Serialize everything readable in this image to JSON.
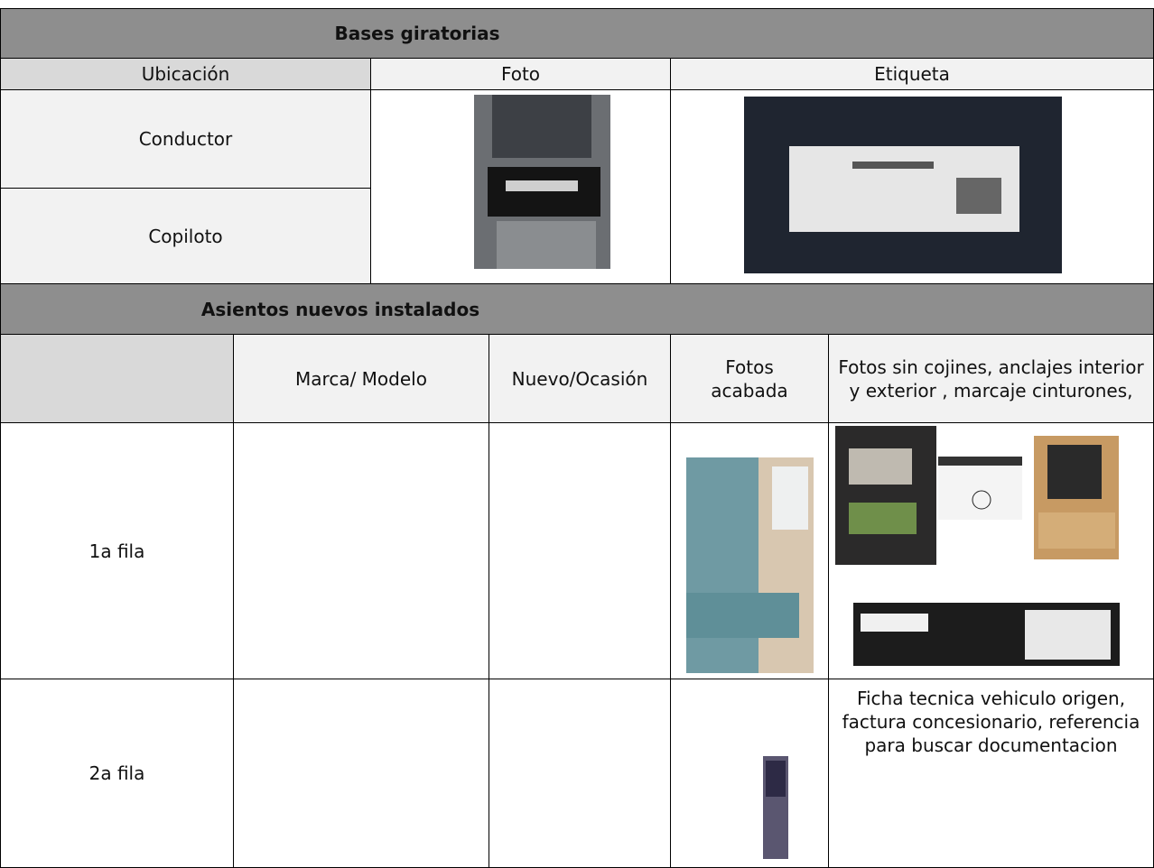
{
  "sections": [
    {
      "title": "Bases giratorias",
      "columns": [
        "Ubicación",
        "Foto",
        "Etiqueta"
      ],
      "rows": [
        "Conductor",
        "Copiloto"
      ]
    },
    {
      "title": "Asientos nuevos instalados",
      "columns": [
        "Marca/ Modelo",
        "Nuevo/Ocasión",
        "Fotos acabada",
        "Fotos sin cojines, anclajes interior y exterior , marcaje cinturones,"
      ],
      "rows": [
        {
          "label": "1a fila"
        },
        {
          "label": "2a fila",
          "note": "Ficha tecnica vehiculo origen, factura concesionario, referencia para buscar documentacion"
        }
      ]
    }
  ]
}
